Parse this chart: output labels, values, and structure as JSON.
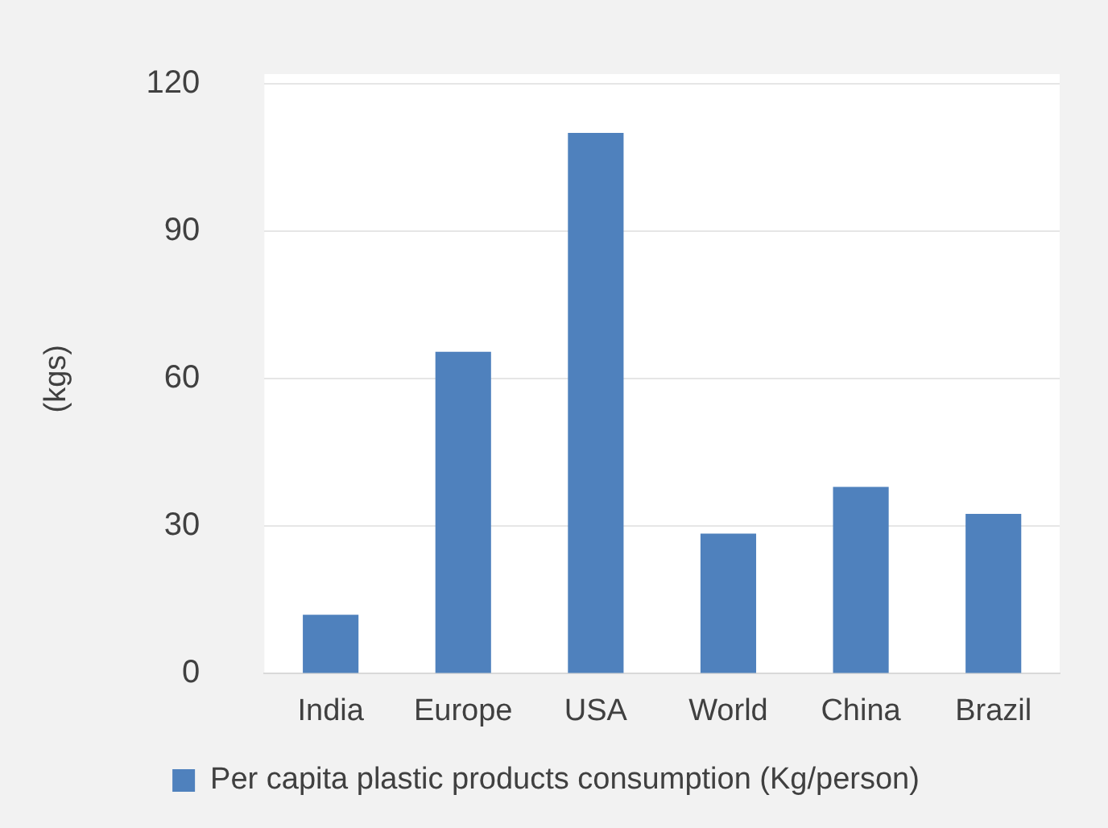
{
  "chart_data": {
    "type": "bar",
    "ylabel": "(kgs)",
    "categories": [
      "India",
      "Europe",
      "USA",
      "World",
      "China",
      "Brazil"
    ],
    "series": [
      {
        "name": "Per capita plastic products consumption (Kg/person)",
        "color": "#4f81bd",
        "values": [
          12,
          65.5,
          110,
          28.5,
          38,
          32.5
        ]
      }
    ],
    "ylim": [
      0,
      120
    ],
    "yticks": [
      0,
      30,
      60,
      90,
      120
    ],
    "grid": "y",
    "legend": "bottom"
  }
}
